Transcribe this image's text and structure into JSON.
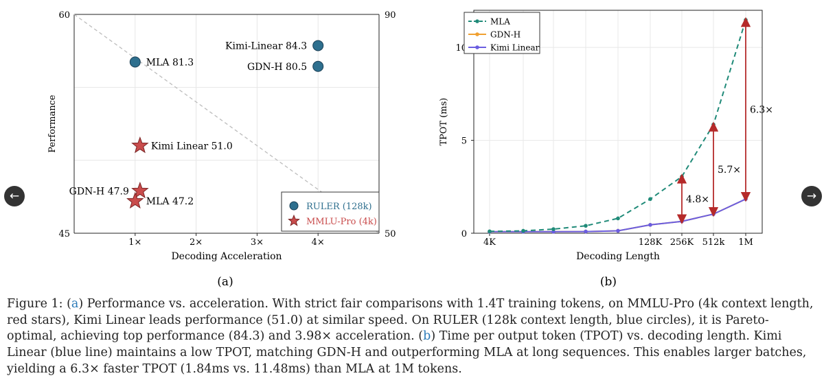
{
  "chart_data": [
    {
      "type": "scatter",
      "panel_label": "(a)",
      "title": "",
      "xlabel": "Decoding Acceleration",
      "ylabel": "Performance",
      "xlim": [
        0.0,
        5.0
      ],
      "ylim_left": [
        45,
        60
      ],
      "ylim_right": [
        50,
        90
      ],
      "xticks": [
        {
          "v": 1,
          "label": "1×"
        },
        {
          "v": 2,
          "label": "2×"
        },
        {
          "v": 3,
          "label": "3×"
        },
        {
          "v": 4,
          "label": "4×"
        }
      ],
      "yticks_left": [
        {
          "v": 45,
          "label": "45"
        },
        {
          "v": 60,
          "label": "60"
        }
      ],
      "yticks_right": [
        {
          "v": 50,
          "label": "50"
        },
        {
          "v": 90,
          "label": "90"
        }
      ],
      "reference_line": {
        "from": [
          0,
          60
        ],
        "to": [
          5,
          45
        ]
      },
      "legend_position": "bottom-right",
      "series": [
        {
          "name": "RULER (128k)",
          "marker": "circle",
          "color": "#2e6f8e",
          "axis": "right",
          "points": [
            {
              "x": 1.0,
              "y": 81.3,
              "label": "MLA 81.3",
              "label_side": "right"
            },
            {
              "x": 4.0,
              "y": 84.3,
              "label": "Kimi-Linear 84.3",
              "label_side": "left"
            },
            {
              "x": 4.0,
              "y": 80.5,
              "label": "GDN-H 80.5",
              "label_side": "left"
            }
          ]
        },
        {
          "name": "MMLU-Pro (4k)",
          "marker": "star",
          "color": "#c94c4c",
          "axis": "left",
          "points": [
            {
              "x": 1.08,
              "y": 51.0,
              "label": "Kimi Linear 51.0",
              "label_side": "right"
            },
            {
              "x": 1.08,
              "y": 47.9,
              "label": "GDN-H 47.9",
              "label_side": "left"
            },
            {
              "x": 1.0,
              "y": 47.2,
              "label": "MLA 47.2",
              "label_side": "right"
            }
          ]
        }
      ]
    },
    {
      "type": "line",
      "panel_label": "(b)",
      "title": "",
      "xlabel": "Decoding Length",
      "ylabel": "TPOT (ms)",
      "ylim": [
        0,
        12
      ],
      "yticks": [
        0,
        5,
        10
      ],
      "x_index": [
        0,
        1,
        2,
        3,
        4,
        5,
        6,
        7,
        8
      ],
      "xtick_labels": [
        {
          "i": 0,
          "label": "4K"
        },
        {
          "i": 5,
          "label": "128K"
        },
        {
          "i": 6,
          "label": "256K"
        },
        {
          "i": 7,
          "label": "512k"
        },
        {
          "i": 8,
          "label": "1M"
        }
      ],
      "legend_position": "top-left",
      "series": [
        {
          "name": "MLA",
          "color": "#1f8a78",
          "style": "dashed",
          "values": [
            0.1,
            0.13,
            0.22,
            0.4,
            0.8,
            1.84,
            3.05,
            5.85,
            11.48
          ]
        },
        {
          "name": "GDN-H",
          "color": "#f0a030",
          "style": "solid",
          "values": [
            0.08,
            0.08,
            0.08,
            0.09,
            0.13,
            0.45,
            0.64,
            1.03,
            1.84
          ]
        },
        {
          "name": "Kimi Linear",
          "color": "#6a5de0",
          "style": "solid",
          "values": [
            0.08,
            0.08,
            0.08,
            0.09,
            0.13,
            0.45,
            0.64,
            1.03,
            1.84
          ]
        }
      ],
      "annotations": [
        {
          "i": 6,
          "label": "4.8×",
          "label_side": "right"
        },
        {
          "i": 7,
          "label": "5.7×",
          "label_side": "right"
        },
        {
          "i": 8,
          "label": "6.3×",
          "label_side": "right"
        }
      ],
      "arrow_color": "#b52a2a"
    }
  ],
  "navigation": {
    "prev_icon": "←",
    "next_icon": "→"
  },
  "caption": {
    "prefix": "Figure 1: (",
    "ref_a": "a",
    "part_a": ") Performance vs. acceleration. With strict fair comparisons with 1.4T training tokens, on MMLU-Pro (4k context length, red stars), Kimi Linear leads performance (51.0) at similar speed. On RULER (128k context length, blue circles), it is Pareto-optimal, achieving top performance (84.3) and 3.98× acceleration. (",
    "ref_b": "b",
    "part_b": ") Time per output token (TPOT) vs. decoding length. Kimi Linear (blue line) maintains a low TPOT, matching GDN-H and outperforming MLA at long sequences. This enables larger batches, yielding a 6.3× faster TPOT (1.84ms vs. 11.48ms) than MLA at 1M tokens."
  }
}
